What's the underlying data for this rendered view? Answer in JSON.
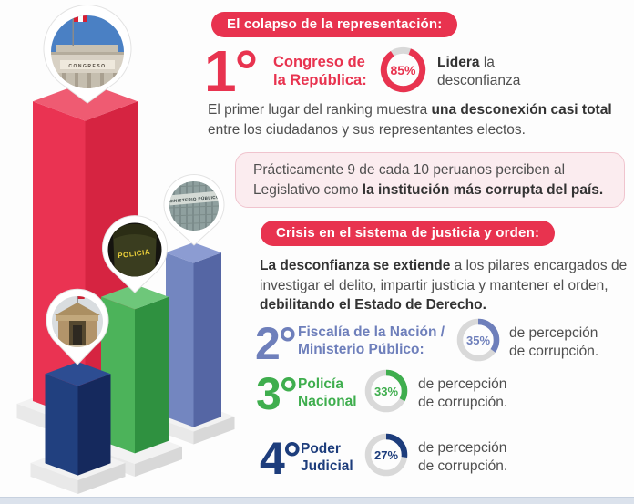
{
  "palette": {
    "accent_red": "#e8334f",
    "body_text": "#4f4f4f",
    "bold_text": "#333333",
    "pink_box_bg": "#fbecef",
    "pink_box_border": "#f0c4ce",
    "donut_track": "#d9d9d9",
    "footer_strip": "#dbe2ec",
    "bar_red_front": "#ea3352",
    "bar_red_side": "#d62441",
    "bar_red_top": "#ef5b72",
    "bar_periwinkle_front": "#7386c0",
    "bar_periwinkle_side": "#5566a4",
    "bar_periwinkle_top": "#8c9cd2",
    "bar_green_front": "#4cb35a",
    "bar_green_side": "#2f9140",
    "bar_green_top": "#6ec77a",
    "bar_navy_front": "#21407f",
    "bar_navy_side": "#15295d",
    "bar_navy_top": "#2d4d92",
    "pedestal_top": "#f2f2f2",
    "pedestal_front": "#e9e9e9",
    "pedestal_side": "#d8d8d8"
  },
  "section1": {
    "badge": "El colapso de la representación:",
    "rank": "1°",
    "institution": "Congreso de\nla República:",
    "percent_label": "85%",
    "percent_value": 85,
    "note": [
      {
        "t": "Lidera",
        "b": true
      },
      {
        "t": " la\ndesconfianza",
        "b": false
      }
    ],
    "paragraph": [
      {
        "t": "El primer lugar del ranking muestra ",
        "b": false
      },
      {
        "t": "una desconexión casi total",
        "b": true
      },
      {
        "t": " entre los ciudadanos y sus representantes electos.",
        "b": false
      }
    ],
    "callout": [
      {
        "t": "Prácticamente 9 de cada 10 peruanos perciben al Legislativo como ",
        "b": false
      },
      {
        "t": "la institución más corrupta del país.",
        "b": true
      }
    ]
  },
  "section2": {
    "badge": "Crisis en el sistema de justicia y orden:",
    "paragraph": [
      {
        "t": "La desconfianza se extiende",
        "b": true
      },
      {
        "t": " a los pilares encargados de investigar el delito, impartir justicia y mantener el orden, ",
        "b": false
      },
      {
        "t": "debilitando el Estado de Derecho.",
        "b": true
      }
    ],
    "rows": [
      {
        "rank": "2°",
        "label": "Fiscalía de la Nación /\nMinisterio Público:",
        "percent_label": "35%",
        "percent_value": 35,
        "color": "#6e7fbb",
        "suffix": "de percepción\nde corrupción."
      },
      {
        "rank": "3°",
        "label": "Policía\nNacional",
        "percent_label": "33%",
        "percent_value": 33,
        "color": "#3fae4e",
        "suffix": "de percepción\nde corrupción."
      },
      {
        "rank": "4°",
        "label": "Poder\nJudicial",
        "percent_label": "27%",
        "percent_value": 27,
        "color": "#1d3d7c",
        "suffix": "de percepción\nde corrupción."
      }
    ]
  },
  "pins": {
    "congreso_sign": "CONGRESO",
    "ministerio_sign": "MINISTERIO PÚBLICO",
    "policia_sign": "POLICIA"
  },
  "chart_data": {
    "type": "bar",
    "style": "3d-isometric-columns-with-location-pins",
    "categories": [
      "Congreso de la República",
      "Fiscalía de la Nación / Ministerio Público",
      "Policía Nacional",
      "Poder Judicial"
    ],
    "values": [
      85,
      35,
      33,
      27
    ],
    "ranks": [
      "1°",
      "2°",
      "3°",
      "4°"
    ],
    "unit": "%",
    "bar_colors": [
      "#ea3352",
      "#7386c0",
      "#4cb35a",
      "#21407f"
    ],
    "value_meaning": "percepción de corrupción"
  }
}
